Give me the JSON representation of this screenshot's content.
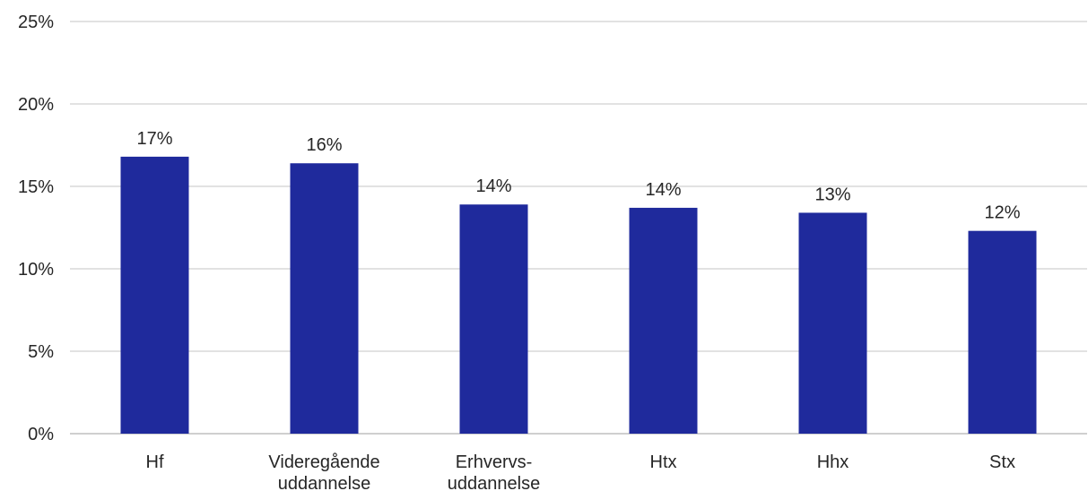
{
  "chart_data": {
    "type": "bar",
    "categories": [
      [
        "Hf"
      ],
      [
        "Videregående",
        "uddannelse"
      ],
      [
        "Erhvervs-",
        "uddannelse"
      ],
      [
        "Htx"
      ],
      [
        "Hhx"
      ],
      [
        "Stx"
      ]
    ],
    "values": [
      16.8,
      16.4,
      13.9,
      13.7,
      13.4,
      12.3
    ],
    "data_labels": [
      "17%",
      "16%",
      "14%",
      "14%",
      "13%",
      "12%"
    ],
    "y_ticks": [
      0,
      5,
      10,
      15,
      20,
      25
    ],
    "y_tick_labels": [
      "0%",
      "5%",
      "10%",
      "15%",
      "20%",
      "25%"
    ],
    "ylim": [
      0,
      25
    ],
    "grid": true,
    "legend": "none",
    "bar_color": "#1f2a9c",
    "title": "",
    "xlabel": "",
    "ylabel": ""
  }
}
